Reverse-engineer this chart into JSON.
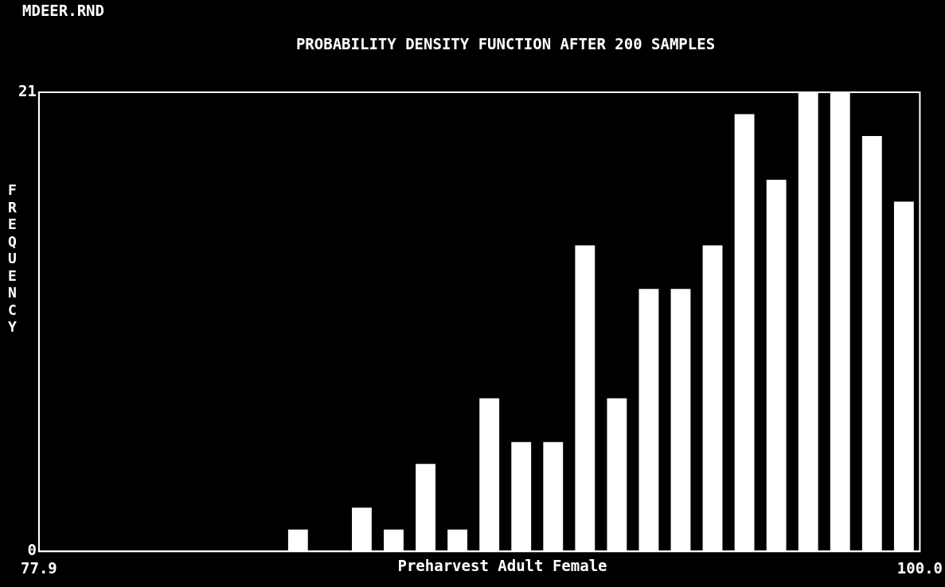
{
  "chart_data": {
    "type": "histogram",
    "title": "PROBABILITY DENSITY FUNCTION AFTER 200 SAMPLES",
    "xlabel": "Preharvest Adult Female",
    "ylabel": "FREQUENCY",
    "annotations": [
      "MDEER.RND"
    ],
    "bins": [
      84,
      84.8,
      85.6,
      86.4,
      87.2,
      88,
      88.8,
      89.6,
      90.4,
      91.2,
      92,
      92.8,
      93.6,
      94.4,
      95.2,
      96,
      96.8,
      97.6,
      98.4,
      99.2,
      100
    ],
    "values": [
      1,
      0,
      2,
      1,
      4,
      1,
      7,
      5,
      5,
      14,
      7,
      12,
      12,
      14,
      20,
      17,
      21,
      21,
      19,
      16
    ],
    "color": "#ffffff",
    "xlim": [
      77.9,
      100
    ],
    "xticks": [
      77.9,
      {
        "value": 100,
        "label": "100.0"
      }
    ],
    "ylim": [
      0,
      21
    ],
    "yticks": [
      0,
      21
    ],
    "grid": false,
    "legend": false
  }
}
